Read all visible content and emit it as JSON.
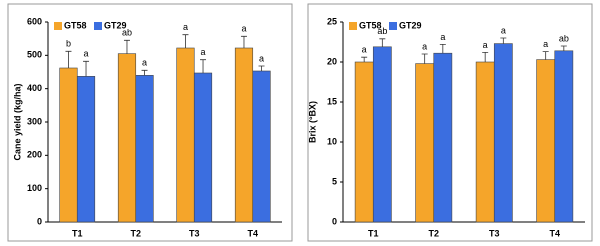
{
  "chart_data": [
    {
      "type": "bar",
      "y_label": "Cane yield (kg/ha)",
      "categories": [
        "T1",
        "T2",
        "T3",
        "T4"
      ],
      "series": [
        {
          "name": "GT58",
          "color": "#f5a52a",
          "values": [
            462,
            505,
            522,
            522
          ],
          "errors": [
            50,
            40,
            40,
            35
          ],
          "letters": [
            "b",
            "ab",
            "a",
            "a"
          ]
        },
        {
          "name": "GT29",
          "color": "#3b6ee0",
          "values": [
            437,
            440,
            447,
            453
          ],
          "errors": [
            45,
            15,
            40,
            15
          ],
          "letters": [
            "a",
            "a",
            "a",
            "a"
          ]
        }
      ],
      "ylim": [
        0,
        600
      ],
      "yticks": [
        0,
        100,
        200,
        300,
        400,
        500,
        600
      ],
      "legend": "top-left"
    },
    {
      "type": "bar",
      "y_label": "Brix (°BX)",
      "categories": [
        "T1",
        "T2",
        "T3",
        "T4"
      ],
      "series": [
        {
          "name": "GT58",
          "color": "#f5a52a",
          "values": [
            20.0,
            19.8,
            20.0,
            20.3
          ],
          "errors": [
            0.6,
            1.2,
            1.2,
            1.0
          ],
          "letters": [
            "a",
            "a",
            "a",
            "a"
          ]
        },
        {
          "name": "GT29",
          "color": "#3b6ee0",
          "values": [
            21.9,
            21.1,
            22.3,
            21.4
          ],
          "errors": [
            1.0,
            1.1,
            0.7,
            0.6
          ],
          "letters": [
            "ab",
            "a",
            "a",
            "ab"
          ]
        }
      ],
      "ylim": [
        0,
        25
      ],
      "yticks": [
        0,
        5,
        10,
        15,
        20,
        25
      ],
      "legend": "top-left"
    }
  ]
}
